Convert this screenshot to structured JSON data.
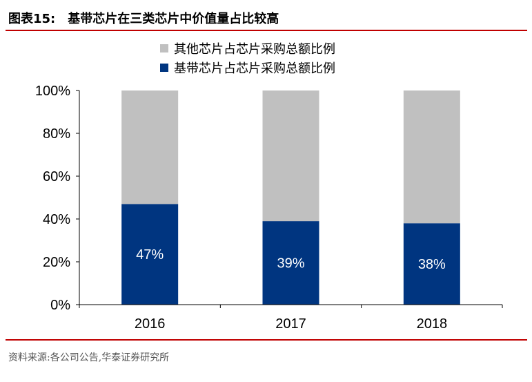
{
  "header": {
    "figure_label": "图表15:",
    "title": "基带芯片在三类芯片中价值量占比较高"
  },
  "footer": {
    "source": "资料来源:各公司公告,华泰证券研究所"
  },
  "colors": {
    "accent_rule": "#c00000",
    "series_other": "#c0c0c0",
    "series_baseband": "#003580",
    "data_label": "#ffffff"
  },
  "chart_data": {
    "type": "bar",
    "stacked": true,
    "categories": [
      "2016",
      "2017",
      "2018"
    ],
    "series": [
      {
        "name": "基带芯片占芯片采购总额比例",
        "values": [
          47,
          39,
          38
        ],
        "color": "#003580"
      },
      {
        "name": "其他芯片占芯片采购总额比例",
        "values": [
          53,
          61,
          62
        ],
        "color": "#c0c0c0"
      }
    ],
    "data_labels": [
      "47%",
      "39%",
      "38%"
    ],
    "yticks": [
      "0%",
      "20%",
      "40%",
      "60%",
      "80%",
      "100%"
    ],
    "ylim": [
      0,
      100
    ],
    "grid": false,
    "legend_position": "top-center"
  }
}
